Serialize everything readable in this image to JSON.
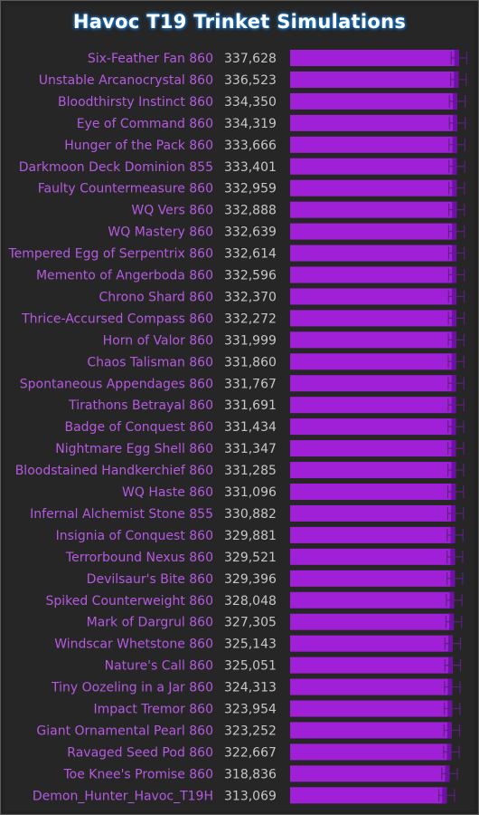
{
  "chart_data": {
    "type": "bar",
    "title": "Havoc T19 Trinket Simulations",
    "xlabel": "",
    "ylabel": "",
    "orientation": "horizontal",
    "grid": false,
    "legend": "none",
    "colors": {
      "bar": "#a020d8",
      "bar_cap": "#7010a8",
      "error_bar": "#5c2080",
      "title_glow": "#1f7fd1",
      "label": "#b55ae0",
      "value": "#c6c6c6"
    },
    "categories": [
      "Six-Feather Fan 860",
      "Unstable Arcanocrystal 860",
      "Bloodthirsty Instinct 860",
      "Eye of Command 860",
      "Hunger of the Pack 860",
      "Darkmoon Deck Dominion 855",
      "Faulty Countermeasure 860",
      "WQ Vers 860",
      "WQ Mastery 860",
      "Tempered Egg of Serpentrix 860",
      "Memento of Angerboda 860",
      "Chrono Shard 860",
      "Thrice-Accursed Compass 860",
      "Horn of Valor 860",
      "Chaos Talisman 860",
      "Spontaneous Appendages 860",
      "Tirathons Betrayal 860",
      "Badge of Conquest 860",
      "Nightmare Egg Shell 860",
      "Bloodstained Handkerchief 860",
      "WQ Haste 860",
      "Infernal Alchemist Stone 855",
      "Insignia of Conquest 860",
      "Terrorbound Nexus 860",
      "Devilsaur's Bite 860",
      "Spiked Counterweight 860",
      "Mark of Dargrul 860",
      "Windscar Whetstone 860",
      "Nature's Call 860",
      "Tiny Oozeling in a Jar 860",
      "Impact Tremor 860",
      "Giant Ornamental Pearl 860",
      "Ravaged Seed Pod 860",
      "Toe Knee's Promise 860",
      "Demon_Hunter_Havoc_T19H"
    ],
    "values": [
      337628,
      336523,
      334350,
      334319,
      333666,
      333401,
      332959,
      332888,
      332639,
      332614,
      332596,
      332370,
      332272,
      331999,
      331860,
      331767,
      331691,
      331434,
      331347,
      331285,
      331096,
      330882,
      329881,
      329521,
      329396,
      328048,
      327305,
      325143,
      325051,
      324313,
      323954,
      323252,
      322667,
      318836,
      313069
    ],
    "value_labels": [
      "337,628",
      "336,523",
      "334,350",
      "334,319",
      "333,666",
      "333,401",
      "332,959",
      "332,888",
      "332,639",
      "332,614",
      "332,596",
      "332,370",
      "332,272",
      "331,999",
      "331,860",
      "331,767",
      "331,691",
      "331,434",
      "331,347",
      "331,285",
      "331,096",
      "330,882",
      "329,881",
      "329,521",
      "329,396",
      "328,048",
      "327,305",
      "325,143",
      "325,051",
      "324,313",
      "323,954",
      "323,252",
      "322,667",
      "318,836",
      "313,069"
    ],
    "error_low": [
      322000,
      321000,
      318500,
      318500,
      317800,
      317600,
      317300,
      317300,
      317000,
      317000,
      317000,
      316800,
      316600,
      316400,
      316300,
      316200,
      316100,
      315900,
      315800,
      315700,
      315500,
      315300,
      314300,
      313900,
      313800,
      312500,
      311700,
      309600,
      309500,
      308800,
      308400,
      307700,
      307100,
      303300,
      297500
    ],
    "error_high": [
      353200,
      352000,
      350200,
      350100,
      349500,
      349200,
      348600,
      348500,
      348300,
      348200,
      348200,
      348000,
      347900,
      347600,
      347400,
      347300,
      347200,
      347000,
      346900,
      346800,
      346700,
      346500,
      345500,
      345100,
      345000,
      343600,
      342900,
      340700,
      340600,
      339800,
      339500,
      338800,
      338200,
      334400,
      328600
    ],
    "xlim": [
      0,
      356000
    ]
  }
}
